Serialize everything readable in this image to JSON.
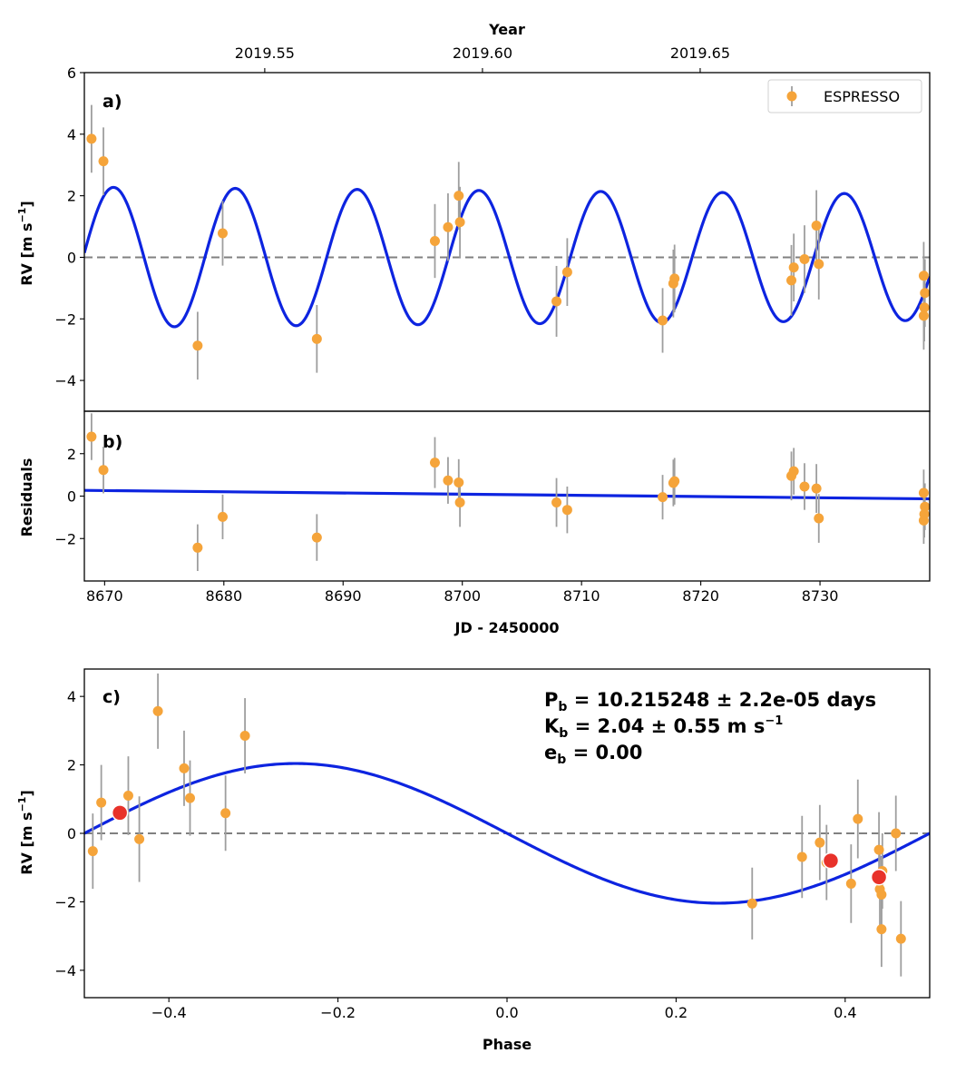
{
  "colors": {
    "points": "#f5a43a",
    "errorbar": "#9e9e9e",
    "model": "#0d24e0",
    "zero_line": "#808080",
    "binned": "#e8322a"
  },
  "chart_data": [
    {
      "panel": "a",
      "type": "scatter",
      "panel_label": "a)",
      "top_axis_label": "Year",
      "top_ticks": [
        "2019.55",
        "2019.60",
        "2019.65"
      ],
      "top_tick_jd": [
        8665.17,
        8683.43,
        8701.69,
        8719.95
      ],
      "ylabel_main": "RV [m s",
      "ylabel_sup": "−1",
      "ylabel_close": "]",
      "xlim": [
        8668.3,
        8739.2
      ],
      "ylim": [
        -5,
        6
      ],
      "y_ticks": [
        -4,
        -2,
        0,
        2,
        4,
        6
      ],
      "y_tick_labels": [
        "−4",
        "−2",
        "0",
        "2",
        "4",
        "6"
      ],
      "legend": {
        "label": "ESPRESSO",
        "placement": "top-right"
      },
      "model": {
        "period": 10.215248,
        "amplitude_start": 2.28,
        "amplitude_end": 2.05,
        "peak_jd": 8670.75
      },
      "series": [
        {
          "name": "ESPRESSO",
          "points": [
            {
              "x": 8668.9,
              "y": 3.85,
              "err": 1.1
            },
            {
              "x": 8669.9,
              "y": 3.12,
              "err": 1.1
            },
            {
              "x": 8677.8,
              "y": -2.87,
              "err": 1.1
            },
            {
              "x": 8679.9,
              "y": 0.78,
              "err": 1.05
            },
            {
              "x": 8687.8,
              "y": -2.65,
              "err": 1.1
            },
            {
              "x": 8697.7,
              "y": 0.53,
              "err": 1.2
            },
            {
              "x": 8698.8,
              "y": 0.98,
              "err": 1.1
            },
            {
              "x": 8699.7,
              "y": 2.0,
              "err": 1.1
            },
            {
              "x": 8699.8,
              "y": 1.14,
              "err": 1.15
            },
            {
              "x": 8707.9,
              "y": -1.43,
              "err": 1.15
            },
            {
              "x": 8708.8,
              "y": -0.48,
              "err": 1.1
            },
            {
              "x": 8716.8,
              "y": -2.05,
              "err": 1.05
            },
            {
              "x": 8717.7,
              "y": -0.85,
              "err": 1.1
            },
            {
              "x": 8717.8,
              "y": -0.69,
              "err": 1.1
            },
            {
              "x": 8727.6,
              "y": -0.75,
              "err": 1.15
            },
            {
              "x": 8727.8,
              "y": -0.33,
              "err": 1.1
            },
            {
              "x": 8728.7,
              "y": -0.06,
              "err": 1.1
            },
            {
              "x": 8729.7,
              "y": 1.03,
              "err": 1.15
            },
            {
              "x": 8729.9,
              "y": -0.22,
              "err": 1.15
            },
            {
              "x": 8738.7,
              "y": -0.6,
              "err": 1.1
            },
            {
              "x": 8738.8,
              "y": -1.16,
              "err": 1.1
            },
            {
              "x": 8738.75,
              "y": -1.63,
              "err": 1.1
            },
            {
              "x": 8738.7,
              "y": -1.9,
              "err": 1.1
            }
          ]
        }
      ]
    },
    {
      "panel": "b",
      "type": "scatter",
      "panel_label": "b)",
      "ylabel": "Residuals",
      "xlabel": "JD - 2450000",
      "xlim": [
        8668.3,
        8739.2
      ],
      "ylim": [
        -4,
        4
      ],
      "x_ticks": [
        8670,
        8680,
        8690,
        8700,
        8710,
        8720,
        8730
      ],
      "x_tick_labels": [
        "8670",
        "8680",
        "8690",
        "8700",
        "8710",
        "8720",
        "8730"
      ],
      "y_ticks": [
        -2,
        0,
        2
      ],
      "y_tick_labels": [
        "−2",
        "0",
        "2"
      ],
      "trend_line": {
        "x": [
          8668.3,
          8739.2
        ],
        "y": [
          0.27,
          -0.13
        ]
      },
      "series": [
        {
          "name": "ESPRESSO",
          "points": [
            {
              "x": 8668.9,
              "y": 2.8,
              "err": 1.1
            },
            {
              "x": 8669.9,
              "y": 1.23,
              "err": 1.1
            },
            {
              "x": 8677.8,
              "y": -2.43,
              "err": 1.1
            },
            {
              "x": 8679.9,
              "y": -0.98,
              "err": 1.05
            },
            {
              "x": 8687.8,
              "y": -1.95,
              "err": 1.1
            },
            {
              "x": 8697.7,
              "y": 1.58,
              "err": 1.2
            },
            {
              "x": 8698.8,
              "y": 0.74,
              "err": 1.1
            },
            {
              "x": 8699.7,
              "y": 0.64,
              "err": 1.1
            },
            {
              "x": 8699.8,
              "y": -0.3,
              "err": 1.15
            },
            {
              "x": 8707.9,
              "y": -0.3,
              "err": 1.15
            },
            {
              "x": 8708.8,
              "y": -0.65,
              "err": 1.1
            },
            {
              "x": 8716.8,
              "y": -0.05,
              "err": 1.05
            },
            {
              "x": 8717.7,
              "y": 0.62,
              "err": 1.1
            },
            {
              "x": 8717.8,
              "y": 0.7,
              "err": 1.1
            },
            {
              "x": 8727.6,
              "y": 0.95,
              "err": 1.15
            },
            {
              "x": 8727.8,
              "y": 1.17,
              "err": 1.1
            },
            {
              "x": 8728.7,
              "y": 0.45,
              "err": 1.1
            },
            {
              "x": 8729.7,
              "y": 0.36,
              "err": 1.15
            },
            {
              "x": 8729.9,
              "y": -1.05,
              "err": 1.15
            },
            {
              "x": 8738.7,
              "y": 0.15,
              "err": 1.1
            },
            {
              "x": 8738.8,
              "y": -0.5,
              "err": 1.1
            },
            {
              "x": 8738.75,
              "y": -0.85,
              "err": 1.1
            },
            {
              "x": 8738.7,
              "y": -1.15,
              "err": 1.1
            }
          ]
        }
      ]
    },
    {
      "panel": "c",
      "type": "scatter",
      "panel_label": "c)",
      "ylabel_main": "RV [m s",
      "ylabel_sup": "−1",
      "ylabel_close": "]",
      "xlabel": "Phase",
      "xlim": [
        -0.5,
        0.5
      ],
      "ylim": [
        -4.8,
        4.8
      ],
      "x_ticks": [
        -0.4,
        -0.2,
        0.0,
        0.2,
        0.4
      ],
      "x_tick_labels": [
        "−0.4",
        "−0.2",
        "0.0",
        "0.2",
        "0.4"
      ],
      "y_ticks": [
        -4,
        -2,
        0,
        2,
        4
      ],
      "y_tick_labels": [
        "−4",
        "−2",
        "0",
        "2",
        "4"
      ],
      "annotations": [
        {
          "main": "P",
          "sub": "b",
          "rest": " = 10.215248 ± 2.2e-05 days"
        },
        {
          "main": "K",
          "sub": "b",
          "rest": " = 2.04 ± 0.55 m s",
          "sup": "−1"
        },
        {
          "main": "e",
          "sub": "b",
          "rest": " = 0.00"
        }
      ],
      "model": {
        "amplitude": 2.04,
        "shape": "sin(-2*pi*phase)"
      },
      "series": [
        {
          "name": "ESPRESSO",
          "points": [
            {
              "x": -0.49,
              "y": -0.52,
              "err": 1.1
            },
            {
              "x": -0.48,
              "y": 0.9,
              "err": 1.1
            },
            {
              "x": -0.448,
              "y": 1.1,
              "err": 1.15
            },
            {
              "x": -0.435,
              "y": -0.17,
              "err": 1.25
            },
            {
              "x": -0.413,
              "y": 3.57,
              "err": 1.1
            },
            {
              "x": -0.382,
              "y": 1.9,
              "err": 1.1
            },
            {
              "x": -0.375,
              "y": 1.03,
              "err": 1.1
            },
            {
              "x": -0.333,
              "y": 0.59,
              "err": 1.1
            },
            {
              "x": -0.31,
              "y": 2.85,
              "err": 1.1
            },
            {
              "x": 0.29,
              "y": -2.05,
              "err": 1.05
            },
            {
              "x": 0.349,
              "y": -0.69,
              "err": 1.2
            },
            {
              "x": 0.37,
              "y": -0.27,
              "err": 1.1
            },
            {
              "x": 0.378,
              "y": -0.85,
              "err": 1.1
            },
            {
              "x": 0.407,
              "y": -1.47,
              "err": 1.15
            },
            {
              "x": 0.415,
              "y": 0.42,
              "err": 1.15
            },
            {
              "x": 0.44,
              "y": -0.48,
              "err": 1.1
            },
            {
              "x": 0.444,
              "y": -1.1,
              "err": 1.1
            },
            {
              "x": 0.441,
              "y": -1.63,
              "err": 1.1
            },
            {
              "x": 0.443,
              "y": -1.79,
              "err": 1.1
            },
            {
              "x": 0.443,
              "y": -2.8,
              "err": 1.1
            },
            {
              "x": 0.46,
              "y": 0.0,
              "err": 1.1
            },
            {
              "x": 0.466,
              "y": -3.08,
              "err": 1.1
            }
          ]
        },
        {
          "name": "",
          "binned": true,
          "points": [
            {
              "x": -0.458,
              "y": 0.6
            },
            {
              "x": 0.383,
              "y": -0.8
            },
            {
              "x": 0.44,
              "y": -1.28
            }
          ]
        }
      ]
    }
  ]
}
